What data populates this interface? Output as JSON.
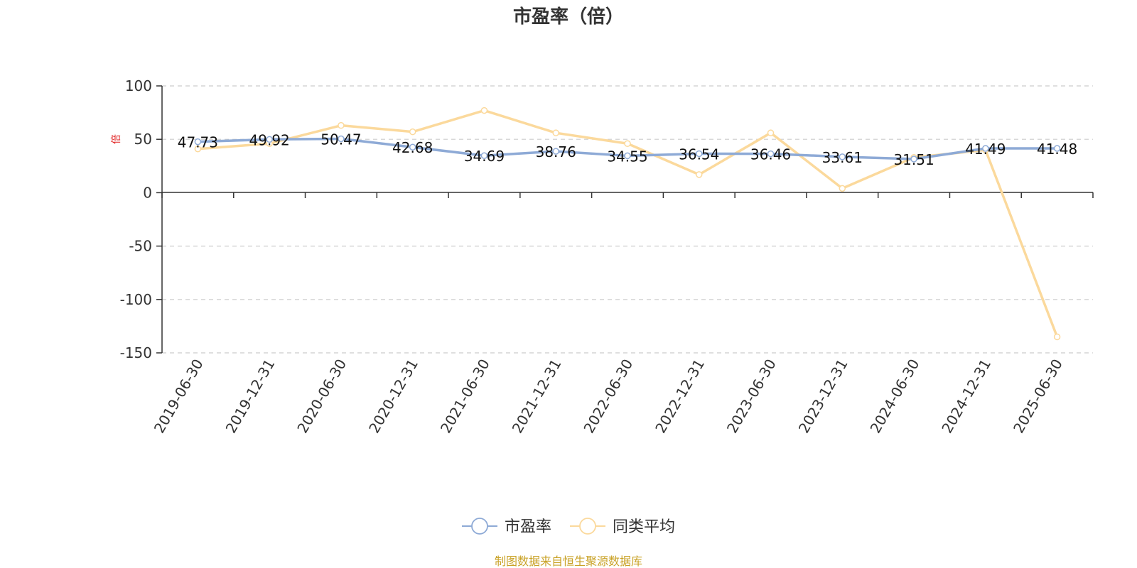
{
  "chart_data": {
    "type": "line",
    "title": "市盈率（倍）",
    "ylabel": "倍",
    "xlabel": "",
    "categories": [
      "2019-06-30",
      "2019-12-31",
      "2020-06-30",
      "2020-12-31",
      "2021-06-30",
      "2021-12-31",
      "2022-06-30",
      "2022-12-31",
      "2023-06-30",
      "2023-12-31",
      "2024-06-30",
      "2024-12-31",
      "2025-06-30"
    ],
    "series": [
      {
        "name": "市盈率",
        "color": "#8eaad6",
        "values": [
          47.73,
          49.92,
          50.47,
          42.68,
          34.69,
          38.76,
          34.55,
          36.54,
          36.46,
          33.61,
          31.51,
          41.49,
          41.48
        ],
        "labels": [
          "47.73",
          "49.92",
          "50.47",
          "42.68",
          "34.69",
          "38.76",
          "34.55",
          "36.54",
          "36.46",
          "33.61",
          "31.51",
          "41.49",
          "41.48"
        ]
      },
      {
        "name": "同类平均",
        "color": "#fbd99c",
        "values": [
          41,
          46,
          63,
          57,
          77,
          56,
          46,
          17,
          56,
          4,
          33,
          40,
          -135
        ]
      }
    ],
    "ylim": [
      -150,
      100
    ],
    "yticks": [
      100,
      50,
      0,
      -50,
      -100,
      -150
    ],
    "grid": true,
    "legend_position": "bottom-center",
    "source_note": "制图数据来自恒生聚源数据库"
  }
}
